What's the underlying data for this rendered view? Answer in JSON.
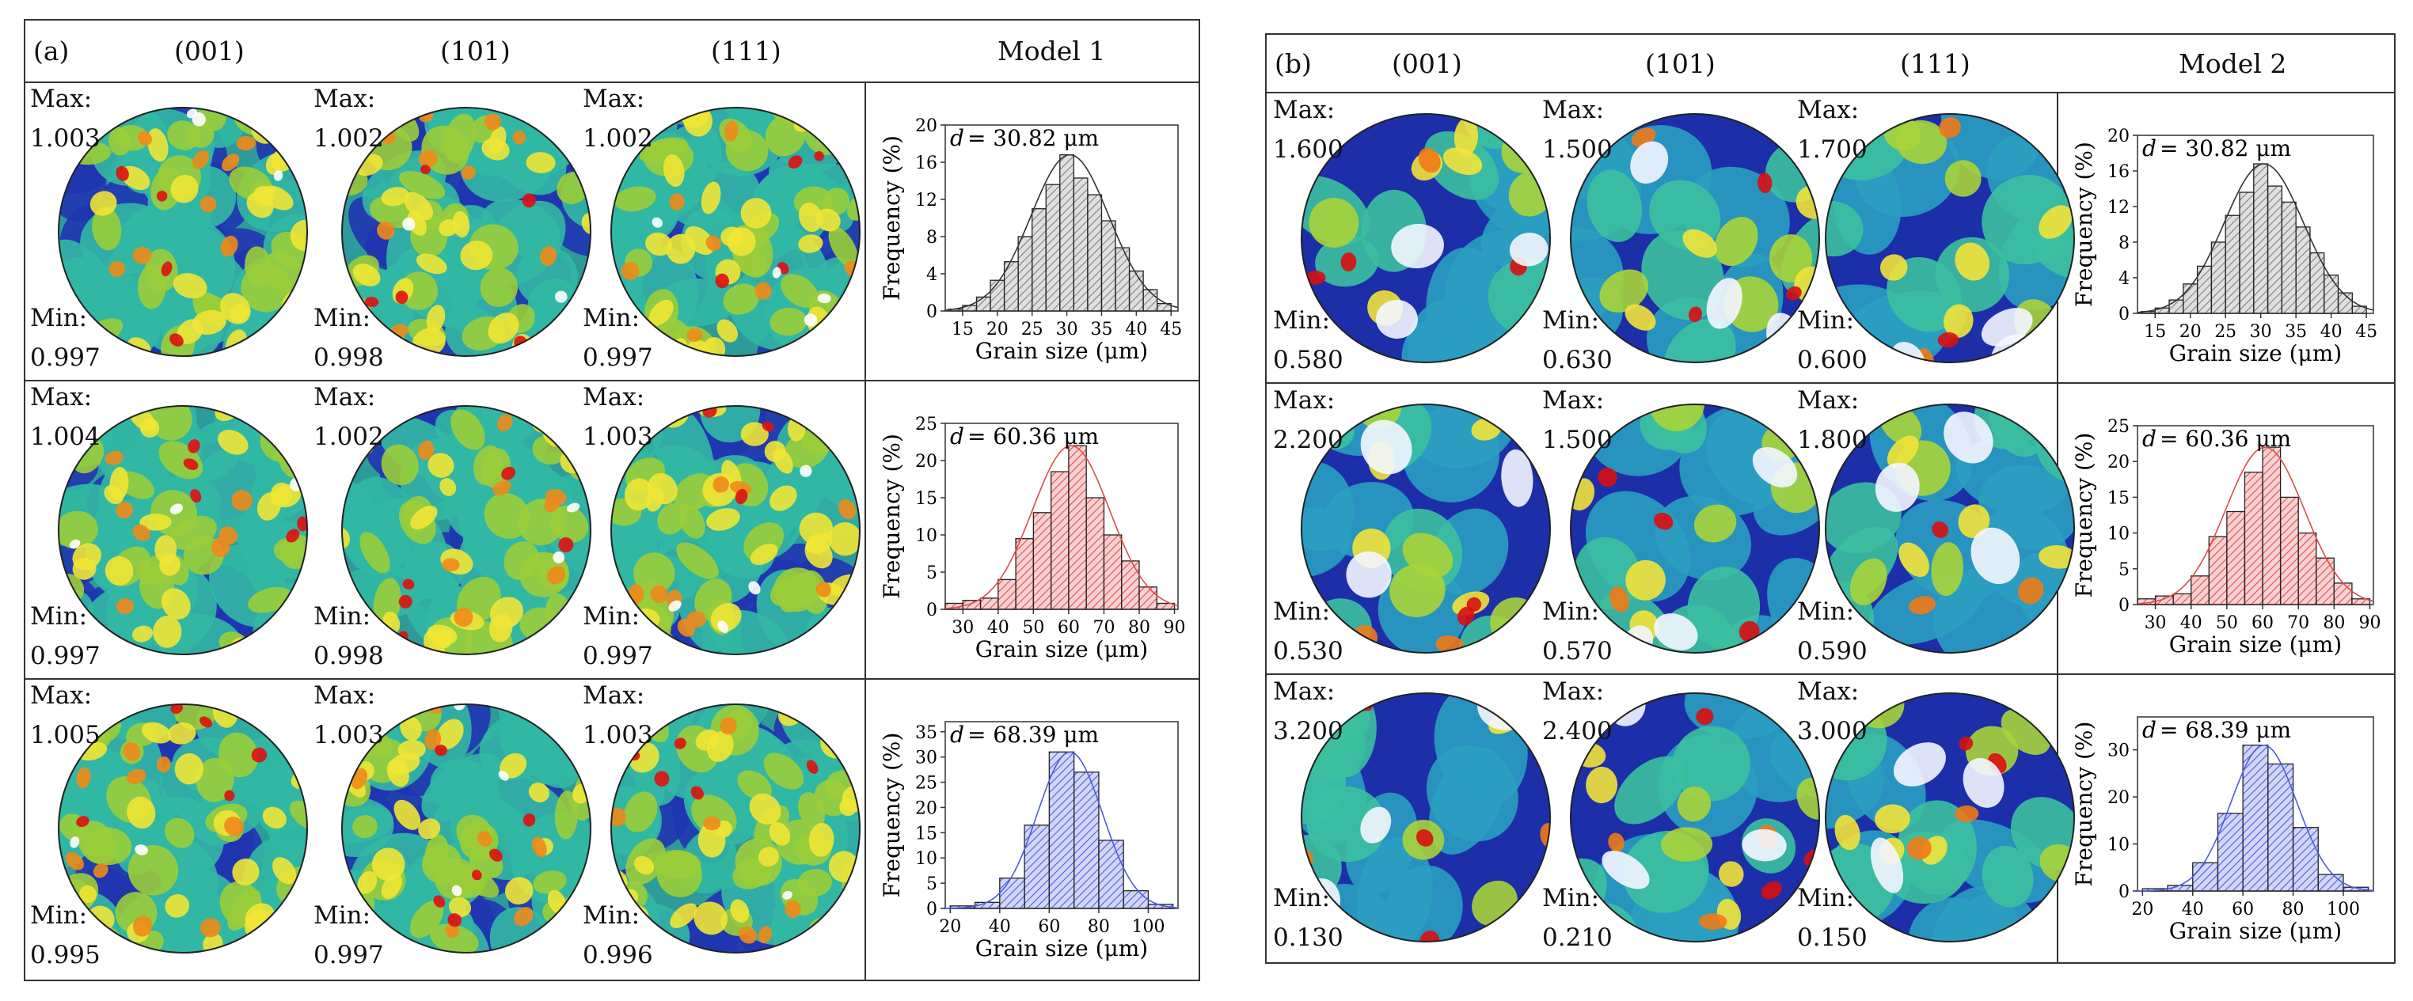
{
  "panels": [
    {
      "label": "(a)",
      "planes": [
        "(001)",
        "(101)",
        "(111)"
      ],
      "model": "Model 1",
      "rows": [
        {
          "max_label": "Max:",
          "min_label": "Min:",
          "max": [
            "1.003",
            "1.002",
            "1.002"
          ],
          "min": [
            "0.997",
            "0.998",
            "0.997"
          ],
          "chart_data": {
            "type": "bar",
            "title": "",
            "annotation_prefix": "d",
            "annotation_value": "= 30.82 μm",
            "xlabel": "Grain size (μm)",
            "ylabel": "Frequency (%)",
            "color": "#808080",
            "xlim": [
              12.5,
              46
            ],
            "ylim": [
              0,
              20
            ],
            "xticks": [
              15,
              20,
              25,
              30,
              35,
              40,
              45
            ],
            "yticks": [
              0,
              4,
              8,
              12,
              16,
              20
            ],
            "x": [
              14,
              16,
              18,
              20,
              22,
              24,
              26,
              28,
              30,
              32,
              34,
              36,
              38,
              40,
              42,
              44
            ],
            "values": [
              0.2,
              0.6,
              1.5,
              3.3,
              5.3,
              8.0,
              11.0,
              13.6,
              16.8,
              14.3,
              12.5,
              9.7,
              6.8,
              4.3,
              2.3,
              0.8
            ]
          }
        },
        {
          "max_label": "Max:",
          "min_label": "Min:",
          "max": [
            "1.004",
            "1.002",
            "1.003"
          ],
          "min": [
            "0.997",
            "0.998",
            "0.997"
          ],
          "chart_data": {
            "type": "bar",
            "title": "",
            "annotation_prefix": "d",
            "annotation_value": "= 60.36 μm",
            "xlabel": "Grain size (μm)",
            "ylabel": "Frequency (%)",
            "color": "#e24a4a",
            "xlim": [
              25,
              91
            ],
            "ylim": [
              0,
              25
            ],
            "xticks": [
              30,
              40,
              50,
              60,
              70,
              80,
              90
            ],
            "yticks": [
              0,
              5,
              10,
              15,
              20,
              25
            ],
            "x": [
              27.5,
              32.5,
              37.5,
              42.5,
              47.5,
              52.5,
              57.5,
              62.5,
              67.5,
              72.5,
              77.5,
              82.5,
              87.5
            ],
            "values": [
              0.8,
              1.2,
              1.5,
              4.0,
              9.5,
              13.0,
              18.5,
              22.0,
              15.0,
              10.0,
              6.5,
              3.0,
              0.8
            ]
          }
        },
        {
          "max_label": "Max:",
          "min_label": "Min:",
          "max": [
            "1.005",
            "1.003",
            "1.003"
          ],
          "min": [
            "0.995",
            "0.997",
            "0.996"
          ],
          "chart_data": {
            "type": "bar",
            "title": "",
            "annotation_prefix": "d",
            "annotation_value": "= 68.39 μm",
            "xlabel": "Grain size (μm)",
            "ylabel": "Frequency (%)",
            "color": "#4a5de2",
            "xlim": [
              18,
              112
            ],
            "ylim": [
              0,
              37
            ],
            "xticks": [
              20,
              40,
              60,
              80,
              100
            ],
            "yticks": [
              0,
              5,
              10,
              15,
              20,
              25,
              30,
              35
            ],
            "x": [
              25,
              35,
              45,
              55,
              65,
              75,
              85,
              95,
              105
            ],
            "values": [
              0.5,
              1.2,
              6.0,
              16.5,
              31.0,
              27.0,
              13.5,
              3.5,
              0.8
            ]
          }
        }
      ]
    },
    {
      "label": "(b)",
      "planes": [
        "(001)",
        "(101)",
        "(111)"
      ],
      "model": "Model 2",
      "rows": [
        {
          "max_label": "Max:",
          "min_label": "Min:",
          "max": [
            "1.600",
            "1.500",
            "1.700"
          ],
          "min": [
            "0.580",
            "0.630",
            "0.600"
          ],
          "chart_data": {
            "type": "bar",
            "title": "",
            "annotation_prefix": "d",
            "annotation_value": "= 30.82 μm",
            "xlabel": "Grain size (μm)",
            "ylabel": "Frequency (%)",
            "color": "#808080",
            "xlim": [
              12.5,
              46
            ],
            "ylim": [
              0,
              20
            ],
            "xticks": [
              15,
              20,
              25,
              30,
              35,
              40,
              45
            ],
            "yticks": [
              0,
              4,
              8,
              12,
              16,
              20
            ],
            "x": [
              14,
              16,
              18,
              20,
              22,
              24,
              26,
              28,
              30,
              32,
              34,
              36,
              38,
              40,
              42,
              44
            ],
            "values": [
              0.2,
              0.6,
              1.5,
              3.3,
              5.3,
              8.0,
              11.0,
              13.6,
              16.8,
              14.3,
              12.5,
              9.7,
              6.8,
              4.3,
              2.3,
              0.8
            ]
          }
        },
        {
          "max_label": "Max:",
          "min_label": "Min:",
          "max": [
            "2.200",
            "1.500",
            "1.800"
          ],
          "min": [
            "0.530",
            "0.570",
            "0.590"
          ],
          "chart_data": {
            "type": "bar",
            "title": "",
            "annotation_prefix": "d",
            "annotation_value": "= 60.36 μm",
            "xlabel": "Grain size (μm)",
            "ylabel": "Frequency (%)",
            "color": "#e24a4a",
            "xlim": [
              25,
              91
            ],
            "ylim": [
              0,
              25
            ],
            "xticks": [
              30,
              40,
              50,
              60,
              70,
              80,
              90
            ],
            "yticks": [
              0,
              5,
              10,
              15,
              20,
              25
            ],
            "x": [
              27.5,
              32.5,
              37.5,
              42.5,
              47.5,
              52.5,
              57.5,
              62.5,
              67.5,
              72.5,
              77.5,
              82.5,
              87.5
            ],
            "values": [
              0.8,
              1.2,
              1.5,
              4.0,
              9.5,
              13.0,
              18.5,
              22.0,
              15.0,
              10.0,
              6.5,
              3.0,
              0.8
            ]
          }
        },
        {
          "max_label": "Max:",
          "min_label": "Min:",
          "max": [
            "3.200",
            "2.400",
            "3.000"
          ],
          "min": [
            "0.130",
            "0.210",
            "0.150"
          ],
          "chart_data": {
            "type": "bar",
            "title": "",
            "annotation_prefix": "d",
            "annotation_value": "= 68.39 μm",
            "xlabel": "Grain size (μm)",
            "ylabel": "Frequency (%)",
            "color": "#4a5de2",
            "xlim": [
              18,
              112
            ],
            "ylim": [
              0,
              37
            ],
            "xticks": [
              20,
              40,
              60,
              80,
              100
            ],
            "yticks": [
              0,
              10,
              20,
              30
            ],
            "x": [
              25,
              35,
              45,
              55,
              65,
              75,
              85,
              95,
              105
            ],
            "values": [
              0.5,
              1.2,
              6.0,
              16.5,
              31.0,
              27.0,
              13.5,
              3.5,
              0.8
            ]
          }
        }
      ]
    }
  ]
}
